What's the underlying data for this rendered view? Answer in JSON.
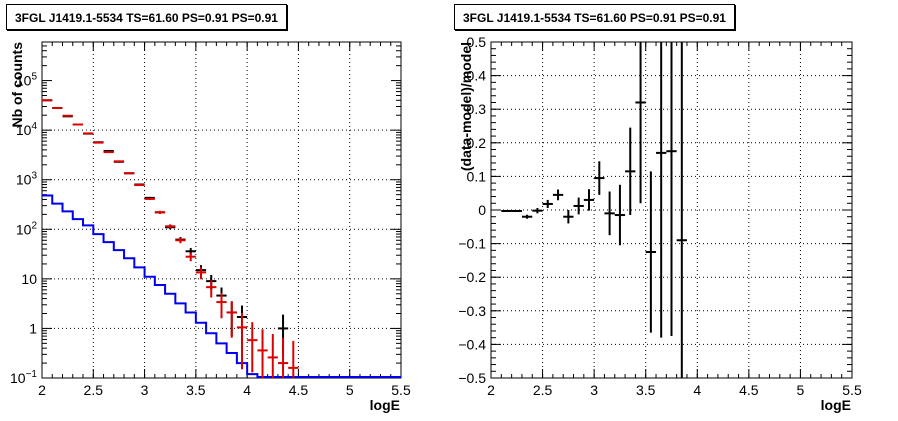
{
  "chart_data": [
    {
      "type": "line",
      "title": "3FGL J1419.1-5534 TS=61.60 PS=0.91 PS=0.91",
      "xlabel": "logE",
      "ylabel": "Nb of counts",
      "log_y": true,
      "xlim": [
        2,
        5.5
      ],
      "ylim": [
        0.1,
        600000
      ],
      "grid": true,
      "x_ticks": [
        "2",
        "2.5",
        "3",
        "3.5",
        "4",
        "4.5",
        "5",
        "5.5"
      ],
      "y_ticks": [
        "10^{-1}",
        "1",
        "10",
        "10^{2}",
        "10^{3}",
        "10^{4}",
        "10^{5}"
      ],
      "bin_edges": [
        2.0,
        2.1,
        2.2,
        2.3,
        2.4,
        2.5,
        2.6,
        2.7,
        2.8,
        2.9,
        3.0,
        3.1,
        3.2,
        3.3,
        3.4,
        3.5,
        3.6,
        3.7,
        3.8,
        3.9,
        4.0,
        4.1,
        4.2,
        4.3,
        4.4,
        4.5,
        4.6,
        4.7,
        4.8,
        4.9,
        5.0,
        5.1,
        5.2,
        5.3,
        5.4,
        5.5
      ],
      "series": [
        {
          "style": "data-points",
          "color": "#000000",
          "x": [
            2.05,
            2.15,
            2.25,
            2.35,
            2.45,
            2.55,
            2.65,
            2.75,
            2.85,
            2.95,
            3.05,
            3.15,
            3.25,
            3.35,
            3.45,
            3.55,
            3.65,
            3.75,
            3.85,
            3.95,
            4.35
          ],
          "y": [
            40000,
            28000,
            19000,
            13000,
            8500,
            5700,
            3800,
            2300,
            1350,
            800,
            430,
            220,
            110,
            62,
            36,
            15,
            9,
            4.6,
            2.1,
            1.7,
            1.0
          ],
          "yerr_low": [
            200,
            170,
            140,
            114,
            92,
            75,
            62,
            48,
            37,
            28,
            21,
            15,
            10.5,
            7.9,
            6,
            3.9,
            3,
            2.1,
            1.4,
            1.2,
            0.7
          ],
          "yerr_high": [
            200,
            170,
            140,
            114,
            92,
            75,
            62,
            48,
            37,
            28,
            21,
            15,
            10.5,
            7.9,
            6,
            3.9,
            3,
            2.1,
            1.4,
            1.2,
            0.9
          ]
        },
        {
          "style": "model-points",
          "color": "#dd0000",
          "x": [
            2.05,
            2.15,
            2.25,
            2.35,
            2.45,
            2.55,
            2.65,
            2.75,
            2.85,
            2.95,
            3.05,
            3.15,
            3.25,
            3.35,
            3.45,
            3.55,
            3.65,
            3.75,
            3.85,
            3.95,
            4.05,
            4.15,
            4.25,
            4.35,
            4.45
          ],
          "y": [
            40000,
            28000,
            19500,
            13000,
            8600,
            5600,
            3600,
            2350,
            1350,
            780,
            410,
            220,
            115,
            60,
            28,
            13.5,
            6.8,
            3.4,
            2.1,
            1.05,
            0.58,
            0.36,
            0.26,
            0.2,
            0.16
          ],
          "yerr_low": [
            200,
            170,
            140,
            114,
            92,
            75,
            60,
            48,
            37,
            28,
            20,
            15,
            10.7,
            7.7,
            5.3,
            3.7,
            2.6,
            1.8,
            1.45,
            0.9,
            0.45,
            0.26,
            0.16,
            0.1,
            0.06
          ],
          "yerr_high": [
            200,
            170,
            140,
            114,
            92,
            75,
            60,
            48,
            37,
            28,
            20,
            15,
            10.7,
            7.7,
            5.3,
            3.7,
            2.6,
            1.8,
            1.45,
            1.0,
            0.76,
            0.6,
            0.51,
            0.45,
            0.4
          ]
        },
        {
          "style": "histogram",
          "color": "#0000ee",
          "values": [
            480,
            330,
            230,
            160,
            120,
            80,
            55,
            38,
            26,
            17,
            11,
            7.5,
            5,
            3.2,
            2.1,
            1.3,
            0.8,
            0.5,
            0.32,
            0.2,
            0.12,
            0.1,
            0.1,
            0.1,
            0.1,
            0.1,
            0.1,
            0.1,
            0.1,
            0.1,
            0.1,
            0.1,
            0.1,
            0.1,
            0.1
          ]
        }
      ]
    },
    {
      "type": "scatter",
      "title": "3FGL J1419.1-5534 TS=61.60 PS=0.91 PS=0.91",
      "xlabel": "logE",
      "ylabel": "(data-model)/model",
      "xlim": [
        2,
        5.5
      ],
      "ylim": [
        -0.5,
        0.5
      ],
      "grid": true,
      "x_ticks": [
        "2",
        "2.5",
        "3",
        "3.5",
        "4",
        "4.5",
        "5",
        "5.5"
      ],
      "y_ticks": [
        "-0.5",
        "-0.4",
        "-0.3",
        "-0.2",
        "-0.1",
        "0",
        "0.1",
        "0.2",
        "0.3",
        "0.4",
        "0.5"
      ],
      "series": [
        {
          "color": "#000000",
          "x": [
            2.15,
            2.25,
            2.35,
            2.45,
            2.55,
            2.65,
            2.75,
            2.85,
            2.95,
            3.05,
            3.15,
            3.25,
            3.35,
            3.45,
            3.55,
            3.65,
            3.75,
            3.85
          ],
          "y": [
            -0.003,
            -0.003,
            -0.02,
            -0.002,
            0.018,
            0.045,
            -0.02,
            0.012,
            0.03,
            0.095,
            -0.01,
            -0.015,
            0.115,
            0.32,
            -0.125,
            0.17,
            0.175,
            -0.09
          ],
          "yerr": [
            0.003,
            0.003,
            0.006,
            0.008,
            0.012,
            0.016,
            0.02,
            0.025,
            0.032,
            0.05,
            0.065,
            0.09,
            0.13,
            0.3,
            0.24,
            0.55,
            0.55,
            0.6
          ]
        }
      ]
    }
  ]
}
